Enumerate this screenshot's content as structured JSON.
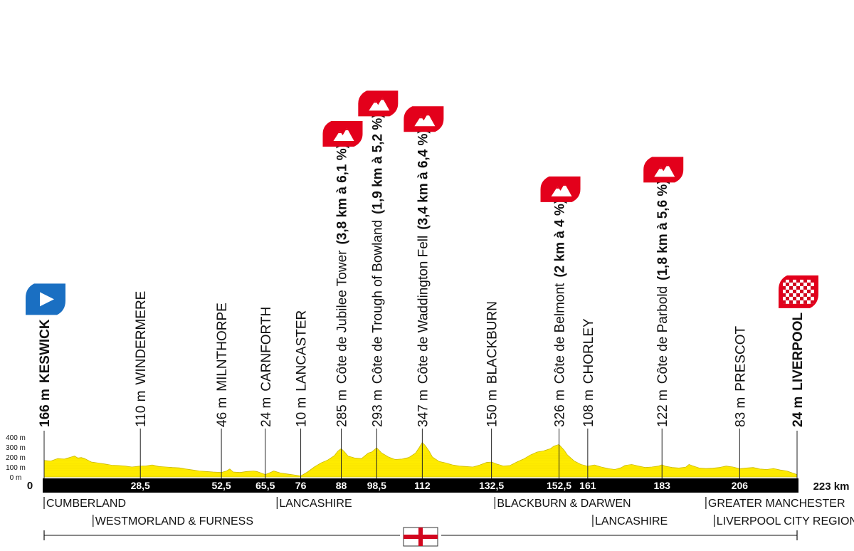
{
  "chart_data": {
    "type": "area",
    "total_distance_label": "223 km",
    "x_max": 223,
    "ylim": [
      0,
      400
    ],
    "y_ticks": [
      "400 m",
      "300 m",
      "200 m",
      "100 m",
      "0 m"
    ],
    "y_tick_values": [
      400,
      300,
      200,
      100,
      0
    ],
    "x_tick_labels": [
      {
        "km": 0,
        "label": "0"
      },
      {
        "km": 28.5,
        "label": "28,5"
      },
      {
        "km": 52.5,
        "label": "52,5"
      },
      {
        "km": 65.5,
        "label": "65,5"
      },
      {
        "km": 76,
        "label": "76"
      },
      {
        "km": 88,
        "label": "88"
      },
      {
        "km": 98.5,
        "label": "98,5"
      },
      {
        "km": 112,
        "label": "112"
      },
      {
        "km": 132.5,
        "label": "132,5"
      },
      {
        "km": 152.5,
        "label": "152,5"
      },
      {
        "km": 161,
        "label": "161"
      },
      {
        "km": 183,
        "label": "183"
      },
      {
        "km": 206,
        "label": "206"
      }
    ],
    "waypoints": [
      {
        "km": 0,
        "alt": "166 m",
        "name": "KESWICK",
        "bold": true,
        "marker": "start"
      },
      {
        "km": 28.5,
        "alt": "110 m",
        "name": "WINDERMERE"
      },
      {
        "km": 52.5,
        "alt": "46 m",
        "name": "MILNTHORPE"
      },
      {
        "km": 65.5,
        "alt": "24 m",
        "name": "CARNFORTH"
      },
      {
        "km": 76,
        "alt": "10 m",
        "name": "LANCASTER"
      },
      {
        "km": 88,
        "alt": "285 m",
        "name": "Côte de Jubilee Tower",
        "climb": "(3,8 km à 6,1 %)",
        "marker": "climb"
      },
      {
        "km": 98.5,
        "alt": "293 m",
        "name": "Côte de Trough of Bowland",
        "climb": "(1,9 km à 5,2 %)",
        "marker": "climb"
      },
      {
        "km": 112,
        "alt": "347 m",
        "name": "Côte de Waddington Fell",
        "climb": "(3,4 km à 6,4 %)",
        "marker": "climb"
      },
      {
        "km": 132.5,
        "alt": "150 m",
        "name": "BLACKBURN"
      },
      {
        "km": 152.5,
        "alt": "326 m",
        "name": "Côte de Belmont",
        "climb": "(2 km à 4 %)",
        "marker": "climb"
      },
      {
        "km": 161,
        "alt": "108 m",
        "name": "CHORLEY"
      },
      {
        "km": 183,
        "alt": "122 m",
        "name": "Côte de Parbold",
        "climb": "(1,8 km à 5,6 %)",
        "marker": "climb"
      },
      {
        "km": 206,
        "alt": "83 m",
        "name": "PRESCOT"
      },
      {
        "km": 223,
        "alt": "24 m",
        "name": "LIVERPOOL",
        "bold": true,
        "marker": "finish"
      }
    ],
    "profile": [
      [
        0,
        166
      ],
      [
        2,
        160
      ],
      [
        4,
        185
      ],
      [
        6,
        180
      ],
      [
        8,
        200
      ],
      [
        9,
        210
      ],
      [
        10,
        190
      ],
      [
        11,
        195
      ],
      [
        12,
        185
      ],
      [
        14,
        150
      ],
      [
        16,
        140
      ],
      [
        18,
        130
      ],
      [
        20,
        118
      ],
      [
        22,
        115
      ],
      [
        24,
        110
      ],
      [
        26,
        100
      ],
      [
        28.5,
        110
      ],
      [
        30,
        110
      ],
      [
        32,
        120
      ],
      [
        34,
        105
      ],
      [
        36,
        100
      ],
      [
        38,
        95
      ],
      [
        40,
        92
      ],
      [
        42,
        80
      ],
      [
        44,
        70
      ],
      [
        46,
        60
      ],
      [
        48,
        55
      ],
      [
        50,
        50
      ],
      [
        52.5,
        46
      ],
      [
        54,
        60
      ],
      [
        55,
        80
      ],
      [
        56,
        50
      ],
      [
        58,
        45
      ],
      [
        60,
        55
      ],
      [
        62,
        60
      ],
      [
        63,
        55
      ],
      [
        65.5,
        24
      ],
      [
        67,
        45
      ],
      [
        68,
        60
      ],
      [
        70,
        40
      ],
      [
        72,
        30
      ],
      [
        74,
        20
      ],
      [
        76,
        10
      ],
      [
        78,
        50
      ],
      [
        80,
        100
      ],
      [
        82,
        140
      ],
      [
        84,
        170
      ],
      [
        86,
        215
      ],
      [
        87,
        260
      ],
      [
        88,
        285
      ],
      [
        89,
        250
      ],
      [
        90,
        210
      ],
      [
        92,
        190
      ],
      [
        94,
        185
      ],
      [
        96,
        240
      ],
      [
        97,
        250
      ],
      [
        98.5,
        293
      ],
      [
        100,
        240
      ],
      [
        102,
        200
      ],
      [
        104,
        175
      ],
      [
        106,
        180
      ],
      [
        108,
        195
      ],
      [
        110,
        240
      ],
      [
        111,
        290
      ],
      [
        112,
        347
      ],
      [
        113,
        310
      ],
      [
        114,
        260
      ],
      [
        115,
        200
      ],
      [
        117,
        155
      ],
      [
        119,
        140
      ],
      [
        121,
        120
      ],
      [
        123,
        110
      ],
      [
        125,
        105
      ],
      [
        127,
        100
      ],
      [
        129,
        120
      ],
      [
        131,
        145
      ],
      [
        132.5,
        150
      ],
      [
        134,
        130
      ],
      [
        136,
        110
      ],
      [
        138,
        115
      ],
      [
        140,
        150
      ],
      [
        142,
        180
      ],
      [
        144,
        220
      ],
      [
        146,
        250
      ],
      [
        148,
        262
      ],
      [
        150,
        285
      ],
      [
        151,
        310
      ],
      [
        152.5,
        326
      ],
      [
        154,
        270
      ],
      [
        155,
        220
      ],
      [
        157,
        160
      ],
      [
        159,
        125
      ],
      [
        161,
        108
      ],
      [
        163,
        120
      ],
      [
        165,
        100
      ],
      [
        167,
        85
      ],
      [
        169,
        75
      ],
      [
        171,
        95
      ],
      [
        172,
        115
      ],
      [
        174,
        125
      ],
      [
        176,
        110
      ],
      [
        178,
        95
      ],
      [
        180,
        100
      ],
      [
        182,
        110
      ],
      [
        183,
        122
      ],
      [
        184,
        108
      ],
      [
        186,
        95
      ],
      [
        188,
        90
      ],
      [
        190,
        98
      ],
      [
        191,
        125
      ],
      [
        192,
        112
      ],
      [
        194,
        90
      ],
      [
        196,
        85
      ],
      [
        198,
        88
      ],
      [
        200,
        95
      ],
      [
        202,
        110
      ],
      [
        204,
        100
      ],
      [
        206,
        83
      ],
      [
        208,
        90
      ],
      [
        210,
        95
      ],
      [
        212,
        80
      ],
      [
        214,
        75
      ],
      [
        216,
        85
      ],
      [
        218,
        70
      ],
      [
        220,
        60
      ],
      [
        223,
        24
      ]
    ],
    "regions": [
      {
        "name": "CUMBERLAND",
        "km": 0,
        "row": 0
      },
      {
        "name": "WESTMORLAND & FURNESS",
        "km": 14.5,
        "row": 1
      },
      {
        "name": "LANCASHIRE",
        "km": 69,
        "row": 0
      },
      {
        "name": "BLACKBURN & DARWEN",
        "km": 133.5,
        "row": 0
      },
      {
        "name": "LANCASHIRE",
        "km": 162.5,
        "row": 1
      },
      {
        "name": "GREATER MANCHESTER",
        "km": 196,
        "row": 0
      },
      {
        "name": "LIVERPOOL CITY REGION",
        "km": 198.5,
        "row": 1
      }
    ],
    "country": "England"
  },
  "colors": {
    "profile_fill": "#ffee00",
    "profile_line": "#c9b800",
    "bar": "#000000",
    "climb_marker": "#e3001b",
    "start_marker": "#1a6fc2",
    "flag_cross": "#d2061e"
  },
  "icons": {
    "start": "start-arrow-icon",
    "climb": "mountain-climb-icon",
    "finish": "checkered-flag-icon",
    "country": "england-flag-icon"
  }
}
